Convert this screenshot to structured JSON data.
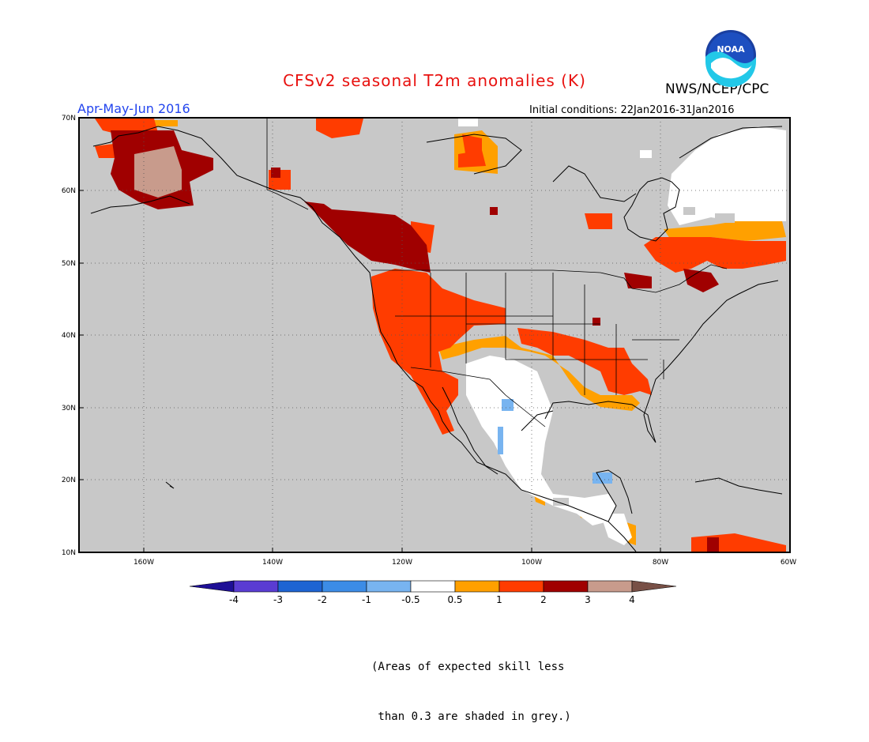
{
  "header": {
    "title": "CFSv2 seasonal T2m anomalies (K)",
    "organization": "NWS/NCEP/CPC",
    "period": "Apr-May-Jun 2016",
    "initial_conditions": "Initial conditions: 22Jan2016-31Jan2016",
    "logo_text": "NOAA"
  },
  "map": {
    "lat_labels": [
      "70N",
      "60N",
      "50N",
      "40N",
      "30N",
      "20N",
      "10N"
    ],
    "lon_labels": [
      "160W",
      "140W",
      "120W",
      "100W",
      "80W",
      "60W"
    ],
    "lat_range": [
      10,
      70
    ],
    "lon_range": [
      -170,
      -60
    ],
    "land_color": "#c8c8c8",
    "grid": "dotted"
  },
  "colorbar": {
    "labels": [
      "-4",
      "-3",
      "-2",
      "-1",
      "-0.5",
      "0.5",
      "1",
      "2",
      "3",
      "4"
    ],
    "colors": [
      "#1e0f96",
      "#5a3cd2",
      "#1e64d2",
      "#3c8ce6",
      "#78b4f0",
      "#ffffff",
      "#ffa000",
      "#ff3c00",
      "#a00000",
      "#c89b8c",
      "#785046"
    ]
  },
  "note": {
    "line1": "(Areas of expected skill less",
    "line2": " than 0.3 are shaded in grey.)"
  }
}
